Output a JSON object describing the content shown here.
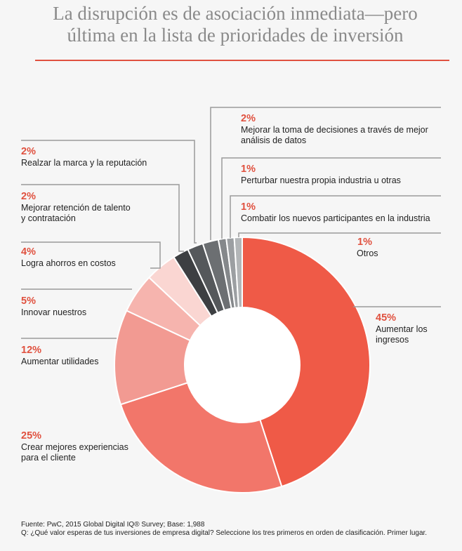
{
  "header": {
    "title_line1": "La disrupción es de asociación inmediata—pero",
    "title_line2": "última en la lista de prioridades de inversión"
  },
  "chart_data": {
    "type": "pie",
    "donut": true,
    "title": "",
    "slices": [
      {
        "value": 45,
        "pct": "45%",
        "label": "Aumentar los\ningresos",
        "color": "#ef5a47"
      },
      {
        "value": 25,
        "pct": "25%",
        "label": "Crear mejores experiencias\npara el cliente",
        "color": "#f2766a"
      },
      {
        "value": 12,
        "pct": "12%",
        "label": "Aumentar utilidades",
        "color": "#f29a92"
      },
      {
        "value": 5,
        "pct": "5%",
        "label": "Innovar nuestros",
        "color": "#f6b4ae"
      },
      {
        "value": 4,
        "pct": "4%",
        "label": "Logra ahorros en costos",
        "color": "#fad6d2"
      },
      {
        "value": 2,
        "pct": "2%",
        "label": "Mejorar retención de talento\ny contratación",
        "color": "#3d3f42"
      },
      {
        "value": 2,
        "pct": "2%",
        "label": "Realzar la marca y la reputación",
        "color": "#55585b"
      },
      {
        "value": 2,
        "pct": "2%",
        "label": "Mejorar la toma de decisiones a través de mejor\nanálisis de datos",
        "color": "#6c6f72"
      },
      {
        "value": 1,
        "pct": "1%",
        "label": "Perturbar nuestra propia industria u otras",
        "color": "#85888b"
      },
      {
        "value": 1,
        "pct": "1%",
        "label": "Combatir los nuevos participantes en la industria",
        "color": "#9c9fa2"
      },
      {
        "value": 1,
        "pct": "1%",
        "label": "Otros",
        "color": "#b3b6b8"
      }
    ]
  },
  "footer": {
    "source": "Fuente: PwC, 2015 Global Digital IQ® Survey; Base: 1,988",
    "question": "Q: ¿Qué valor esperas de tus inversiones de empresa digital? Seleccione los tres primeros en orden de clasificación. Primer lugar."
  },
  "colors": {
    "accent": "#e0513f",
    "title": "#8a8a8a",
    "leader": "#9a9a9a"
  }
}
